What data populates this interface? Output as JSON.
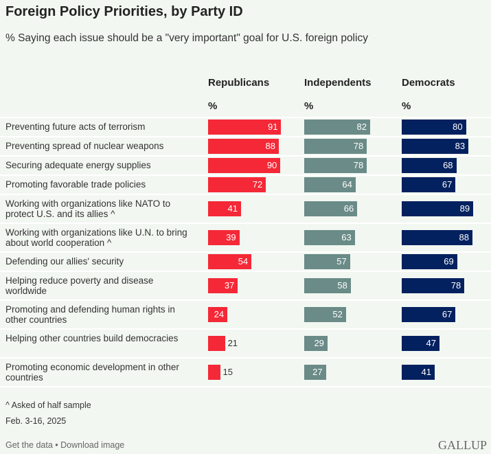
{
  "title": "Foreign Policy Priorities, by Party ID",
  "subtitle": "% Saying each issue should be a \"very important\" goal for U.S. foreign policy",
  "colors": {
    "Republicans": "#f42837",
    "Independents": "#6a8b87",
    "Democrats": "#03205f"
  },
  "chart_data": {
    "type": "bar",
    "title": "Foreign Policy Priorities, by Party ID",
    "unit": "%",
    "categories": [
      "Preventing future acts of terrorism",
      "Preventing spread of nuclear weapons",
      "Securing adequate energy supplies",
      "Promoting favorable trade policies",
      "Working with organizations like NATO to protect U.S. and its allies ^",
      "Working with organizations like U.N. to bring about world cooperation ^",
      "Defending our allies' security",
      "Helping reduce poverty and disease worldwide",
      "Promoting and defending human rights in other countries",
      "Helping other countries build democracies",
      "Promoting economic development in other countries"
    ],
    "series": [
      {
        "name": "Republicans",
        "values": [
          91,
          88,
          90,
          72,
          41,
          39,
          54,
          37,
          24,
          21,
          15
        ]
      },
      {
        "name": "Independents",
        "values": [
          82,
          78,
          78,
          64,
          66,
          63,
          57,
          58,
          52,
          29,
          27
        ]
      },
      {
        "name": "Democrats",
        "values": [
          80,
          83,
          68,
          67,
          89,
          88,
          69,
          78,
          67,
          47,
          41
        ]
      }
    ],
    "ylim": [
      0,
      100
    ]
  },
  "footnote": "^ Asked of half sample",
  "dates": "Feb. 3-16, 2025",
  "links": "Get the data • Download image",
  "logo": "GALLUP"
}
